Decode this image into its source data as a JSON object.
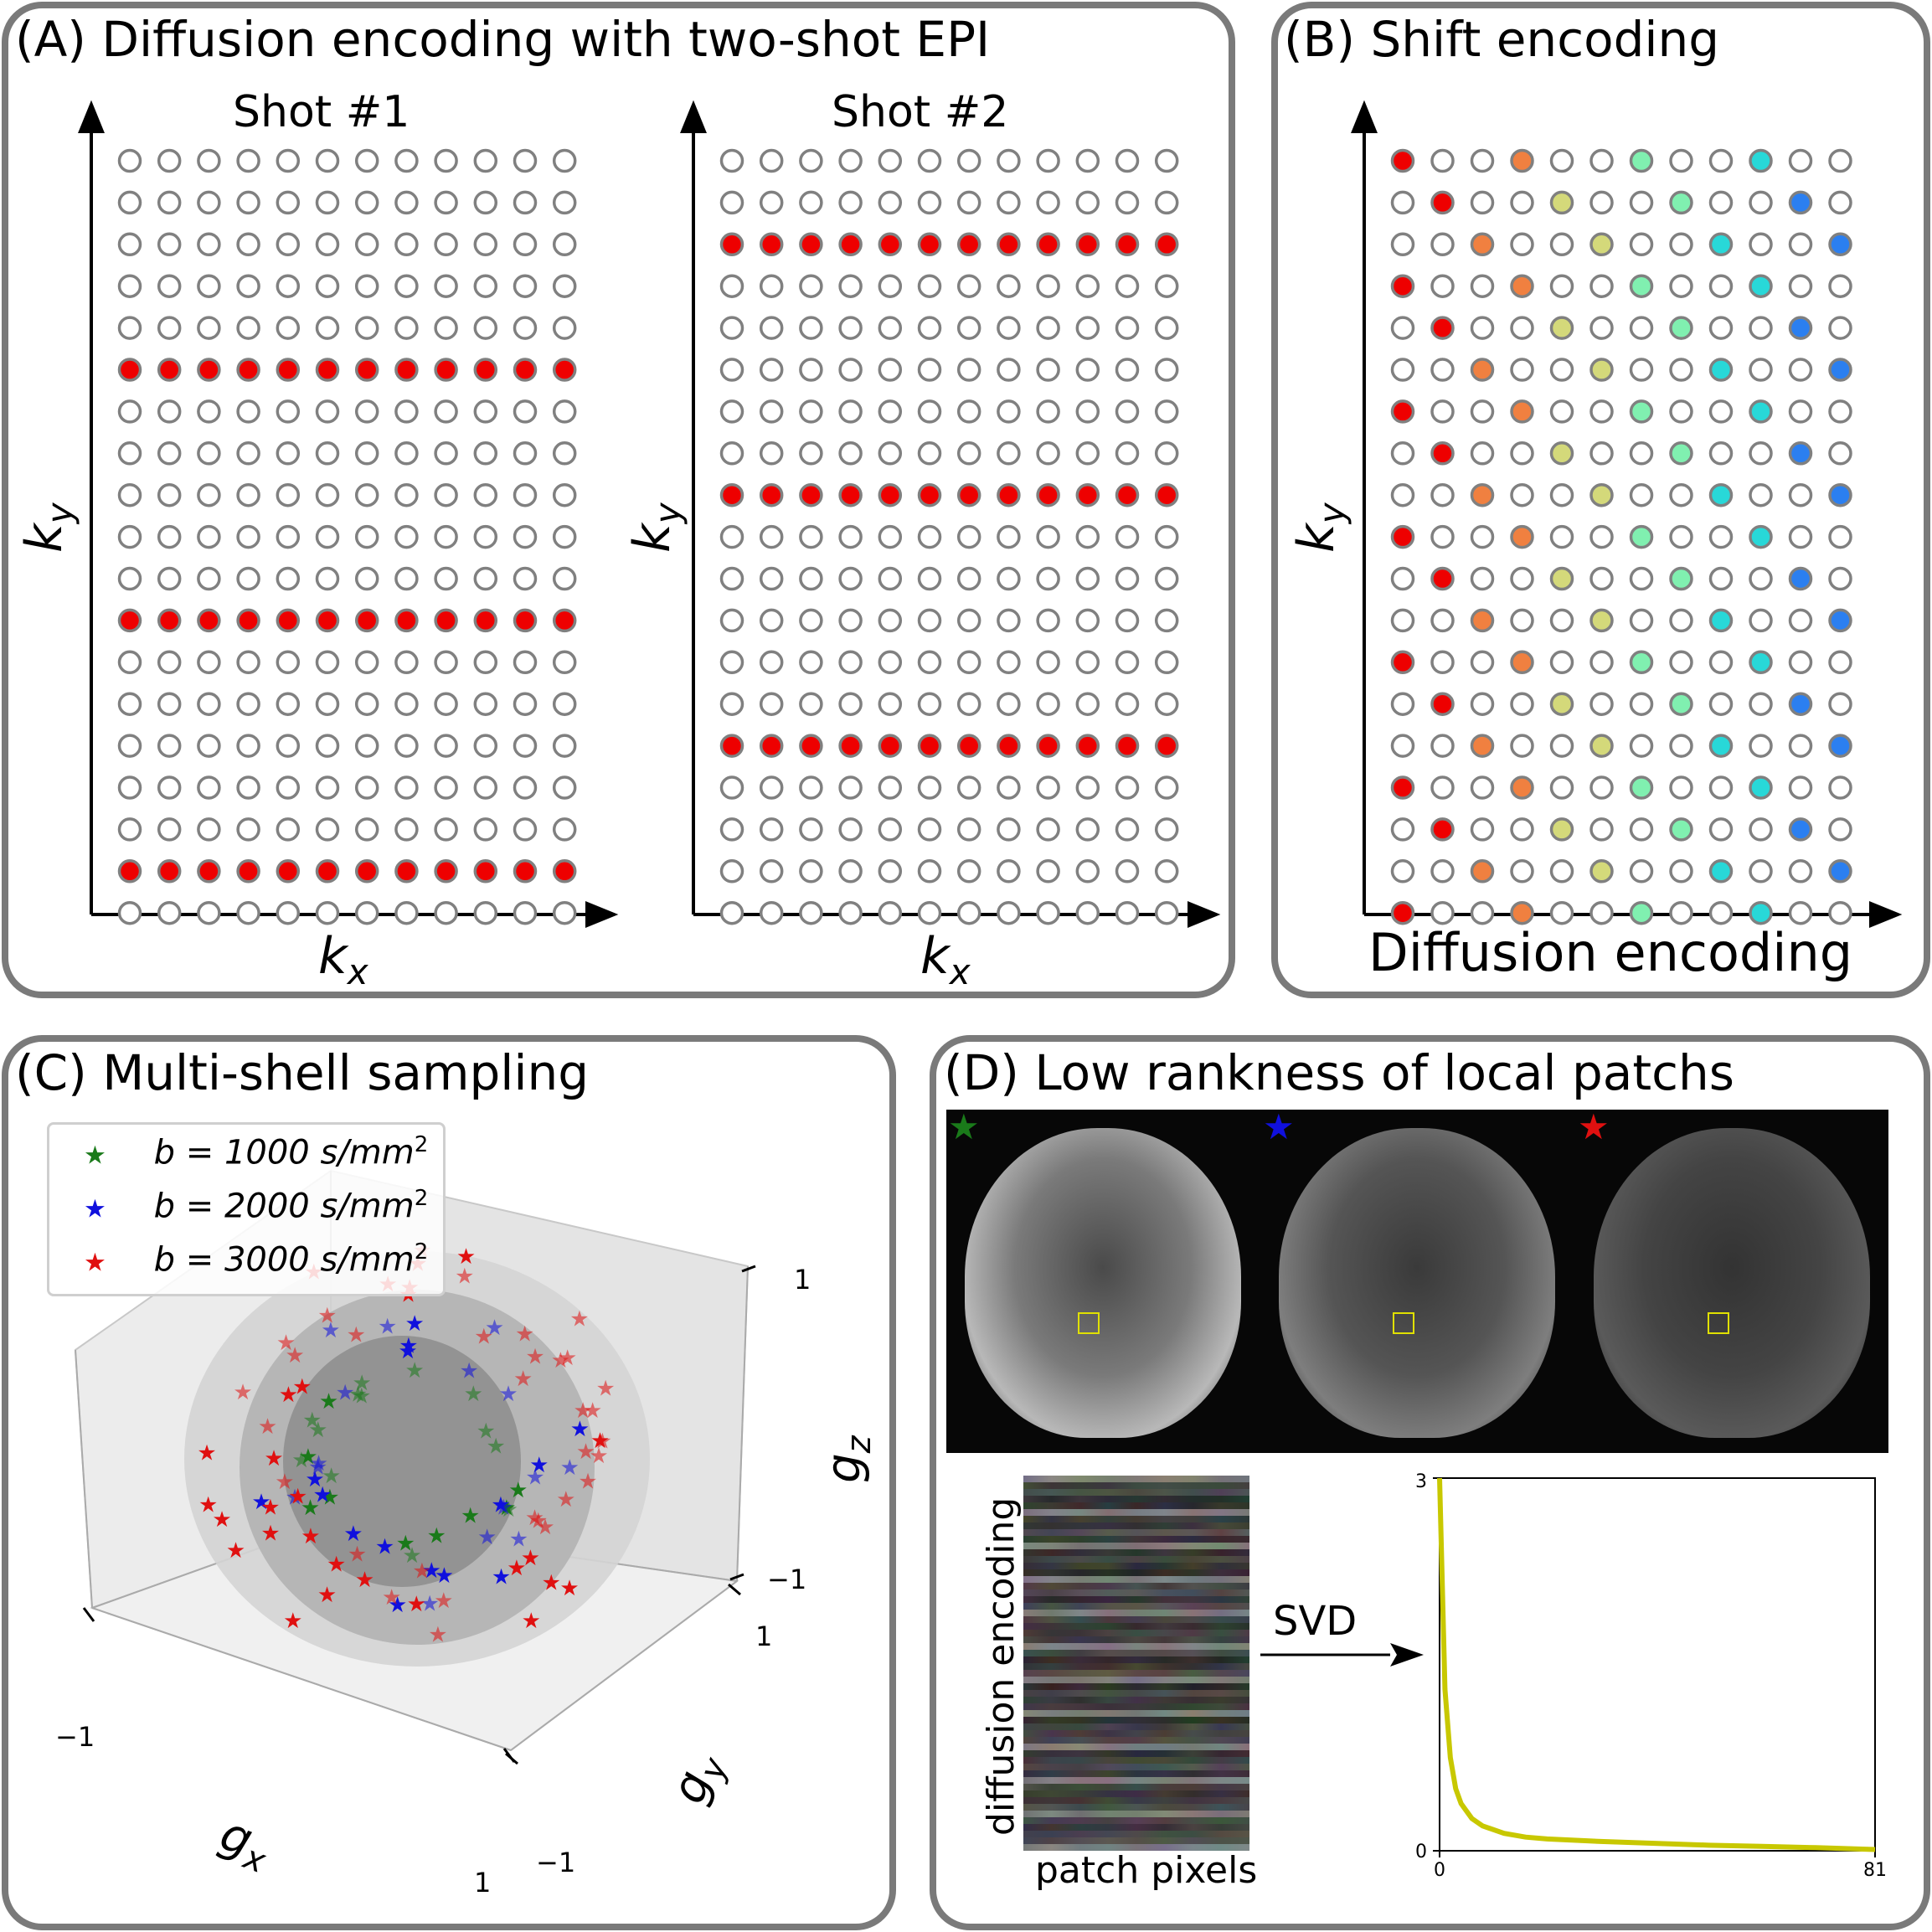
{
  "panelA": {
    "title": "(A) Diffusion encoding with two-shot EPI",
    "shot1_title": "Shot #1",
    "shot2_title": "Shot #2",
    "xlabel_main": "k",
    "xlabel_sub": "x",
    "ylabel_main": "k",
    "ylabel_sub": "y",
    "grid_cols": 12,
    "grid_rows": 19,
    "shot1_filled_rows": [
      5,
      11,
      17
    ],
    "shot2_filled_rows": [
      2,
      8,
      14
    ],
    "fill_color": "#ee0000",
    "empty_stroke": "#808080"
  },
  "panelB": {
    "title": "(B) Shift encoding",
    "xlabel": "Diffusion encoding",
    "ylabel_main": "k",
    "ylabel_sub": "y",
    "grid_cols": 12,
    "grid_rows": 19,
    "column_colors": [
      "#ee0000",
      "#ee0000",
      "#f08040",
      "#f08040",
      "#d4d97a",
      "#d4d97a",
      "#80f0b0",
      "#80f0b0",
      "#28d8d8",
      "#28d8d8",
      "#2b7ff0",
      "#2b7ff0"
    ],
    "filled_cells": [
      [
        0,
        0
      ],
      [
        3,
        0
      ],
      [
        6,
        0
      ],
      [
        9,
        0
      ],
      [
        12,
        0
      ],
      [
        15,
        0
      ],
      [
        18,
        0
      ],
      [
        2,
        1
      ],
      [
        5,
        1
      ],
      [
        8,
        1
      ],
      [
        11,
        1
      ],
      [
        14,
        1
      ],
      [
        17,
        1
      ],
      [
        1,
        2
      ],
      [
        4,
        2
      ],
      [
        7,
        2
      ],
      [
        10,
        2
      ],
      [
        13,
        2
      ],
      [
        16,
        2
      ],
      [
        0,
        3
      ],
      [
        3,
        3
      ],
      [
        6,
        3
      ],
      [
        9,
        3
      ],
      [
        12,
        3
      ],
      [
        15,
        3
      ],
      [
        18,
        3
      ],
      [
        2,
        4
      ],
      [
        5,
        4
      ],
      [
        8,
        4
      ],
      [
        11,
        4
      ],
      [
        14,
        4
      ],
      [
        17,
        4
      ],
      [
        1,
        5
      ],
      [
        4,
        5
      ],
      [
        7,
        5
      ],
      [
        10,
        5
      ],
      [
        13,
        5
      ],
      [
        16,
        5
      ],
      [
        0,
        6
      ],
      [
        3,
        6
      ],
      [
        6,
        6
      ],
      [
        9,
        6
      ],
      [
        12,
        6
      ],
      [
        15,
        6
      ],
      [
        18,
        6
      ],
      [
        2,
        7
      ],
      [
        5,
        7
      ],
      [
        8,
        7
      ],
      [
        11,
        7
      ],
      [
        14,
        7
      ],
      [
        17,
        7
      ],
      [
        1,
        8
      ],
      [
        4,
        8
      ],
      [
        7,
        8
      ],
      [
        10,
        8
      ],
      [
        13,
        8
      ],
      [
        16,
        8
      ],
      [
        0,
        9
      ],
      [
        3,
        9
      ],
      [
        6,
        9
      ],
      [
        9,
        9
      ],
      [
        12,
        9
      ],
      [
        15,
        9
      ],
      [
        18,
        9
      ],
      [
        2,
        10
      ],
      [
        5,
        10
      ],
      [
        8,
        10
      ],
      [
        11,
        10
      ],
      [
        14,
        10
      ],
      [
        17,
        10
      ],
      [
        1,
        11
      ],
      [
        4,
        11
      ],
      [
        7,
        11
      ],
      [
        10,
        11
      ],
      [
        13,
        11
      ],
      [
        16,
        11
      ]
    ]
  },
  "panelC": {
    "title": "(C) Multi-shell sampling",
    "legend": [
      {
        "label": "b = 1000 s/mm",
        "sup": "2",
        "color": "#1a7a1a"
      },
      {
        "label": "b = 2000 s/mm",
        "sup": "2",
        "color": "#1010dd"
      },
      {
        "label": "b = 3000 s/mm",
        "sup": "2",
        "color": "#e01010"
      }
    ],
    "axis_ticks": {
      "gz_top": "1",
      "gz_bottom": "−1",
      "gy_near": "1",
      "gy_far": "−1",
      "gx_left": "−1",
      "gx_right": "1"
    },
    "gx_main": "g",
    "gx_sub": "x",
    "gy_main": "g",
    "gy_sub": "y",
    "gz_main": "g",
    "gz_sub": "z",
    "shell_colors": [
      "#d4d4d4",
      "#b3b3b3",
      "#8f8f8f"
    ]
  },
  "panelD": {
    "title": "(D) Low rankness of local patchs",
    "star_colors": [
      "#1a7a1a",
      "#1010dd",
      "#e01010"
    ],
    "matrix_ylabel": "diffusion encoding",
    "matrix_xlabel": "patch pixels",
    "arrow_label": "SVD",
    "box_color": "#e0e000",
    "curve_color": "#c8c800"
  },
  "chart_data": {
    "type": "line",
    "title": "",
    "xlabel": "",
    "ylabel": "",
    "xlim": [
      0,
      81
    ],
    "ylim": [
      0,
      3
    ],
    "xticks": [
      "0",
      "81"
    ],
    "yticks": [
      "0",
      "3"
    ],
    "series": [
      {
        "x": [
          0,
          1,
          2,
          3,
          4,
          6,
          8,
          12,
          16,
          20,
          30,
          40,
          50,
          60,
          70,
          81
        ],
        "y": [
          3.0,
          1.3,
          0.75,
          0.5,
          0.38,
          0.26,
          0.2,
          0.14,
          0.11,
          0.095,
          0.075,
          0.06,
          0.045,
          0.035,
          0.025,
          0.01
        ]
      }
    ]
  }
}
